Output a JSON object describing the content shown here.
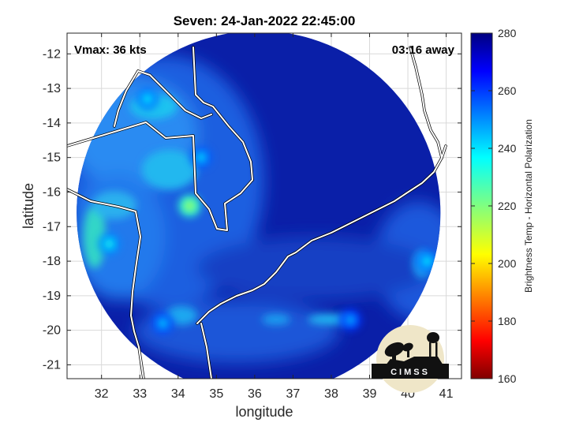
{
  "chart_data": {
    "type": "heatmap",
    "title": "Seven: 24-Jan-2022 22:45:00",
    "xlabel": "longitude",
    "ylabel": "latitude",
    "xlim": [
      31.1,
      41.4
    ],
    "ylim": [
      -21.4,
      -11.4
    ],
    "xticks": [
      32,
      33,
      34,
      35,
      36,
      37,
      38,
      39,
      40,
      41
    ],
    "yticks": [
      -12,
      -13,
      -14,
      -15,
      -16,
      -17,
      -18,
      -19,
      -20,
      -21
    ],
    "grid": true,
    "annotations": {
      "vmax": "Vmax: 36 kts",
      "time_away": "03:16 away"
    },
    "colorbar": {
      "label": "Brightness Temp - Horizontal Polarization",
      "range": [
        160,
        280
      ],
      "ticks": [
        160,
        180,
        200,
        220,
        240,
        260,
        280
      ],
      "colormap": "jet"
    },
    "swath": {
      "center_lon": 36.1,
      "center_lat": -16.6,
      "radius_deg": 4.75
    },
    "warm_centers": [
      {
        "lon": 34.3,
        "lat": -16.4,
        "value": 215
      },
      {
        "lon": 32.2,
        "lat": -17.5,
        "value": 235
      },
      {
        "lon": 33.2,
        "lat": -13.3,
        "value": 238
      },
      {
        "lon": 34.6,
        "lat": -15.0,
        "value": 240
      },
      {
        "lon": 40.5,
        "lat": -18.0,
        "value": 238
      },
      {
        "lon": 38.5,
        "lat": -19.7,
        "value": 245
      },
      {
        "lon": 33.6,
        "lat": -19.8,
        "value": 242
      }
    ],
    "logo_text": "CIMSS"
  },
  "colors": {
    "background": "#ffffff",
    "swath_base": "#0a1fa8",
    "coastline": "#ffffff",
    "border": "#000000"
  }
}
